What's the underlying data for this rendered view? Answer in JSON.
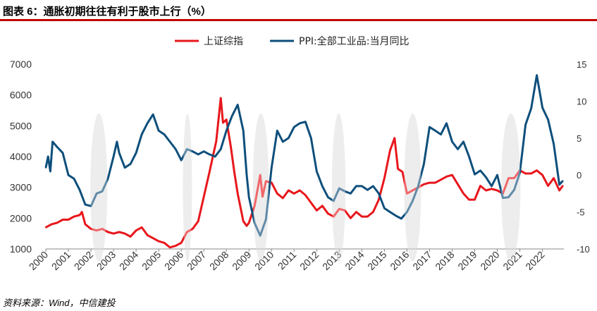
{
  "title": "图表 6：通胀初期往往有利于股市上行（%）",
  "source": "资料来源：Wind，中信建投",
  "colors": {
    "index": "#e8171c",
    "ppi": "#0e4f7c",
    "shade": "#e3e3e3",
    "title_rule": "#c00000"
  },
  "chart_data": {
    "type": "line",
    "legend_position": "top-center",
    "grid": false,
    "x_ticks": [
      "2000",
      "2001",
      "2002",
      "2003",
      "2004",
      "2005",
      "2006",
      "2007",
      "2008",
      "2009",
      "2010",
      "2011",
      "2012",
      "2013",
      "2014",
      "2015",
      "2016",
      "2017",
      "2018",
      "2019",
      "2020",
      "2021",
      "2022"
    ],
    "left_axis": {
      "ylim": [
        1000,
        7000
      ],
      "ticks": [
        1000,
        2000,
        3000,
        4000,
        5000,
        6000,
        7000
      ]
    },
    "right_axis": {
      "ylim": [
        -10,
        15
      ],
      "ticks": [
        -10,
        -5,
        0,
        5,
        10,
        15
      ]
    },
    "shaded_periods": [
      [
        2002.1,
        2002.6
      ],
      [
        2006.2,
        2006.35
      ],
      [
        2009.3,
        2009.75
      ],
      [
        2012.8,
        2013.15
      ],
      [
        2016.0,
        2016.5
      ],
      [
        2020.3,
        2020.9
      ]
    ],
    "series": [
      {
        "name": "上证综指",
        "axis": "left",
        "points": [
          [
            2000.0,
            1700
          ],
          [
            2000.25,
            1800
          ],
          [
            2000.5,
            1850
          ],
          [
            2000.75,
            1950
          ],
          [
            2001.0,
            1950
          ],
          [
            2001.25,
            2050
          ],
          [
            2001.5,
            2100
          ],
          [
            2001.6,
            2200
          ],
          [
            2001.75,
            1800
          ],
          [
            2002.0,
            1650
          ],
          [
            2002.25,
            1600
          ],
          [
            2002.5,
            1650
          ],
          [
            2002.75,
            1550
          ],
          [
            2003.0,
            1500
          ],
          [
            2003.25,
            1550
          ],
          [
            2003.5,
            1500
          ],
          [
            2003.75,
            1400
          ],
          [
            2004.0,
            1600
          ],
          [
            2004.25,
            1700
          ],
          [
            2004.5,
            1450
          ],
          [
            2004.75,
            1350
          ],
          [
            2005.0,
            1250
          ],
          [
            2005.25,
            1200
          ],
          [
            2005.5,
            1050
          ],
          [
            2005.75,
            1100
          ],
          [
            2006.0,
            1200
          ],
          [
            2006.25,
            1550
          ],
          [
            2006.5,
            1650
          ],
          [
            2006.75,
            1900
          ],
          [
            2007.0,
            2700
          ],
          [
            2007.25,
            3500
          ],
          [
            2007.4,
            4000
          ],
          [
            2007.55,
            4500
          ],
          [
            2007.75,
            5900
          ],
          [
            2007.85,
            5100
          ],
          [
            2008.0,
            5200
          ],
          [
            2008.2,
            4300
          ],
          [
            2008.35,
            3500
          ],
          [
            2008.5,
            2800
          ],
          [
            2008.75,
            1900
          ],
          [
            2008.9,
            1750
          ],
          [
            2009.0,
            1850
          ],
          [
            2009.25,
            2400
          ],
          [
            2009.5,
            3400
          ],
          [
            2009.6,
            2700
          ],
          [
            2009.75,
            3200
          ],
          [
            2010.0,
            3150
          ],
          [
            2010.25,
            2800
          ],
          [
            2010.5,
            2650
          ],
          [
            2010.75,
            2900
          ],
          [
            2011.0,
            2800
          ],
          [
            2011.25,
            2900
          ],
          [
            2011.5,
            2750
          ],
          [
            2011.75,
            2500
          ],
          [
            2012.0,
            2250
          ],
          [
            2012.25,
            2400
          ],
          [
            2012.5,
            2150
          ],
          [
            2012.75,
            2050
          ],
          [
            2013.0,
            2300
          ],
          [
            2013.25,
            2250
          ],
          [
            2013.5,
            2000
          ],
          [
            2013.75,
            2200
          ],
          [
            2014.0,
            2050
          ],
          [
            2014.25,
            2050
          ],
          [
            2014.5,
            2200
          ],
          [
            2014.75,
            2600
          ],
          [
            2015.0,
            3300
          ],
          [
            2015.25,
            4200
          ],
          [
            2015.45,
            4600
          ],
          [
            2015.6,
            3600
          ],
          [
            2015.8,
            3500
          ],
          [
            2016.0,
            2800
          ],
          [
            2016.25,
            2900
          ],
          [
            2016.5,
            3000
          ],
          [
            2016.75,
            3100
          ],
          [
            2017.0,
            3150
          ],
          [
            2017.25,
            3150
          ],
          [
            2017.5,
            3250
          ],
          [
            2017.75,
            3350
          ],
          [
            2018.0,
            3400
          ],
          [
            2018.25,
            3100
          ],
          [
            2018.5,
            2800
          ],
          [
            2018.75,
            2600
          ],
          [
            2019.0,
            2600
          ],
          [
            2019.25,
            3050
          ],
          [
            2019.5,
            2900
          ],
          [
            2019.75,
            2950
          ],
          [
            2020.0,
            2900
          ],
          [
            2020.25,
            2800
          ],
          [
            2020.5,
            3300
          ],
          [
            2020.75,
            3300
          ],
          [
            2021.0,
            3550
          ],
          [
            2021.25,
            3450
          ],
          [
            2021.5,
            3450
          ],
          [
            2021.75,
            3550
          ],
          [
            2022.0,
            3400
          ],
          [
            2022.25,
            3050
          ],
          [
            2022.5,
            3300
          ],
          [
            2022.75,
            2900
          ],
          [
            2022.9,
            3050
          ]
        ]
      },
      {
        "name": "PPI:全部工业品:当月同比",
        "axis": "right",
        "points": [
          [
            2000.0,
            1.0
          ],
          [
            2000.1,
            2.5
          ],
          [
            2000.2,
            0.5
          ],
          [
            2000.3,
            4.5
          ],
          [
            2000.5,
            3.8
          ],
          [
            2000.75,
            3.0
          ],
          [
            2001.0,
            0.0
          ],
          [
            2001.25,
            -0.5
          ],
          [
            2001.5,
            -2.0
          ],
          [
            2001.75,
            -4.0
          ],
          [
            2002.0,
            -4.2
          ],
          [
            2002.25,
            -2.5
          ],
          [
            2002.5,
            -2.2
          ],
          [
            2002.75,
            -0.5
          ],
          [
            2003.0,
            2.5
          ],
          [
            2003.15,
            4.5
          ],
          [
            2003.25,
            3.0
          ],
          [
            2003.5,
            1.0
          ],
          [
            2003.75,
            1.5
          ],
          [
            2004.0,
            3.0
          ],
          [
            2004.25,
            5.5
          ],
          [
            2004.5,
            7.0
          ],
          [
            2004.75,
            8.2
          ],
          [
            2005.0,
            6.0
          ],
          [
            2005.25,
            5.5
          ],
          [
            2005.5,
            4.5
          ],
          [
            2005.75,
            3.5
          ],
          [
            2006.0,
            2.0
          ],
          [
            2006.25,
            3.5
          ],
          [
            2006.5,
            3.2
          ],
          [
            2006.75,
            2.8
          ],
          [
            2007.0,
            3.2
          ],
          [
            2007.25,
            2.8
          ],
          [
            2007.5,
            2.5
          ],
          [
            2007.75,
            3.5
          ],
          [
            2008.0,
            6.0
          ],
          [
            2008.25,
            8.0
          ],
          [
            2008.5,
            9.5
          ],
          [
            2008.75,
            6.0
          ],
          [
            2008.9,
            0.0
          ],
          [
            2009.0,
            -3.0
          ],
          [
            2009.25,
            -6.5
          ],
          [
            2009.5,
            -8.2
          ],
          [
            2009.75,
            -6.0
          ],
          [
            2010.0,
            1.0
          ],
          [
            2010.25,
            6.0
          ],
          [
            2010.5,
            4.5
          ],
          [
            2010.75,
            5.0
          ],
          [
            2011.0,
            6.5
          ],
          [
            2011.25,
            7.0
          ],
          [
            2011.5,
            7.2
          ],
          [
            2011.75,
            5.0
          ],
          [
            2012.0,
            0.5
          ],
          [
            2012.25,
            -1.5
          ],
          [
            2012.5,
            -3.0
          ],
          [
            2012.75,
            -3.5
          ],
          [
            2013.0,
            -1.8
          ],
          [
            2013.25,
            -2.2
          ],
          [
            2013.5,
            -2.5
          ],
          [
            2013.75,
            -1.5
          ],
          [
            2014.0,
            -1.5
          ],
          [
            2014.25,
            -2.0
          ],
          [
            2014.5,
            -1.5
          ],
          [
            2014.75,
            -2.5
          ],
          [
            2015.0,
            -4.5
          ],
          [
            2015.25,
            -5.0
          ],
          [
            2015.5,
            -5.5
          ],
          [
            2015.75,
            -5.9
          ],
          [
            2016.0,
            -5.0
          ],
          [
            2016.25,
            -3.5
          ],
          [
            2016.5,
            -1.5
          ],
          [
            2016.75,
            1.5
          ],
          [
            2017.0,
            6.5
          ],
          [
            2017.25,
            6.0
          ],
          [
            2017.5,
            5.5
          ],
          [
            2017.75,
            7.0
          ],
          [
            2018.0,
            4.5
          ],
          [
            2018.25,
            3.5
          ],
          [
            2018.5,
            4.5
          ],
          [
            2018.75,
            2.5
          ],
          [
            2019.0,
            0.1
          ],
          [
            2019.25,
            0.6
          ],
          [
            2019.5,
            -0.3
          ],
          [
            2019.75,
            -1.5
          ],
          [
            2020.0,
            0.0
          ],
          [
            2020.25,
            -3.1
          ],
          [
            2020.5,
            -3.0
          ],
          [
            2020.75,
            -2.0
          ],
          [
            2021.0,
            0.3
          ],
          [
            2021.25,
            6.8
          ],
          [
            2021.5,
            9.0
          ],
          [
            2021.75,
            13.5
          ],
          [
            2022.0,
            9.1
          ],
          [
            2022.25,
            7.5
          ],
          [
            2022.5,
            4.2
          ],
          [
            2022.75,
            -1.3
          ],
          [
            2022.9,
            -0.8
          ]
        ]
      }
    ]
  }
}
